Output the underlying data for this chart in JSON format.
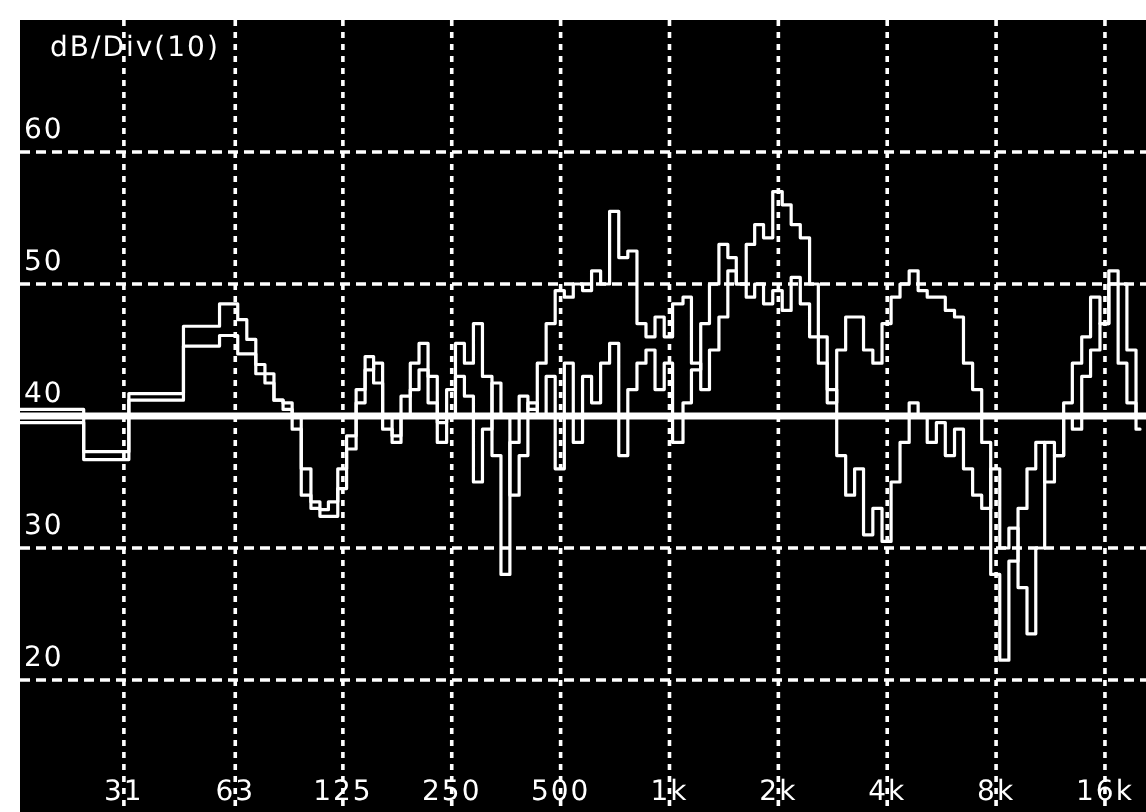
{
  "chart_data": {
    "type": "step",
    "ylabel": "dB/Div(10)",
    "x": [
      16,
      17,
      18,
      19,
      20.2,
      21.4,
      22.6,
      24,
      25.4,
      26.9,
      28.5,
      30.2,
      32,
      33.9,
      35.9,
      38.1,
      40.3,
      42.7,
      45.3,
      48,
      50.8,
      53.8,
      57,
      60.4,
      64,
      67.8,
      71.8,
      76.1,
      80.6,
      85.4,
      90.5,
      95.9,
      102,
      108,
      114,
      121,
      128,
      136,
      144,
      152,
      161,
      171,
      181,
      192,
      203,
      215,
      228,
      242,
      256,
      271,
      287,
      304,
      323,
      342,
      362,
      384,
      406,
      431,
      456,
      483,
      512,
      542,
      575,
      609,
      645,
      683,
      724,
      767,
      813,
      861,
      912,
      967,
      1020,
      1090,
      1150,
      1220,
      1290,
      1370,
      1450,
      1530,
      1630,
      1720,
      1820,
      1930,
      2050,
      2170,
      2300,
      2440,
      2580,
      2730,
      2900,
      3070,
      3250,
      3440,
      3650,
      3870,
      4100,
      4340,
      4600,
      4870,
      5160,
      5470,
      5790,
      6140,
      6500,
      6890,
      7300,
      7730,
      8190,
      8680,
      9200,
      9740,
      10300,
      10900,
      11600,
      12300,
      13000,
      13800,
      14600,
      15500,
      16400,
      17400,
      18400,
      19500,
      20000
    ],
    "series": [
      {
        "color": "#ffffff",
        "values": [
          40.5,
          40.5,
          40.5,
          40.5,
          40.5,
          40.5,
          40.5,
          37.3,
          37.3,
          37.3,
          37.3,
          37.3,
          41.7,
          41.7,
          41.7,
          41.7,
          41.7,
          41.7,
          46.8,
          46.8,
          46.8,
          46.8,
          48.5,
          48.5,
          47.3,
          45.8,
          43.9,
          43.2,
          41.2,
          41,
          40,
          34,
          33.5,
          32.9,
          33.5,
          36,
          38.5,
          42,
          44.5,
          42.5,
          40,
          38,
          41.5,
          44,
          45.5,
          43,
          39.5,
          42,
          45.5,
          44,
          47,
          43,
          37,
          28,
          38,
          41.5,
          40.5,
          44,
          47,
          49.5,
          49,
          50,
          49.5,
          51,
          50,
          55.5,
          52,
          52.5,
          47,
          46,
          47.5,
          46,
          48.5,
          49,
          44,
          42,
          45,
          47.5,
          51,
          50,
          53,
          54.5,
          53.5,
          57,
          56,
          54.5,
          53.5,
          50,
          46,
          42,
          37,
          34,
          36,
          31,
          33,
          30.5,
          35,
          38,
          41,
          40,
          38,
          39.5,
          37,
          39,
          36,
          34,
          33,
          36,
          30,
          31.5,
          27,
          23.5,
          30,
          38,
          37,
          40,
          39,
          43,
          45,
          47,
          50,
          44,
          41,
          39,
          39
        ]
      },
      {
        "color": "#ffffff",
        "values": [
          39.5,
          39.5,
          39.5,
          39.5,
          39.5,
          39.5,
          39.5,
          36.7,
          36.7,
          36.7,
          36.7,
          36.7,
          41.2,
          41.2,
          41.2,
          41.2,
          41.2,
          41.2,
          45.3,
          45.3,
          45.3,
          45.3,
          46.1,
          46.1,
          44.7,
          44.7,
          43.2,
          42.5,
          41.2,
          40.5,
          39,
          36,
          33,
          32.4,
          32.4,
          34.5,
          37.5,
          41,
          43.5,
          44,
          39,
          38.5,
          40,
          42,
          43.5,
          41,
          38,
          40,
          43,
          41.5,
          35,
          39,
          42.5,
          40,
          34,
          37,
          41,
          40,
          43,
          36,
          44,
          38,
          43,
          41,
          44,
          45.5,
          37,
          42,
          44,
          45,
          42,
          44,
          38,
          41,
          43.5,
          47,
          50,
          53,
          52,
          50,
          49,
          50,
          48.5,
          49.5,
          48,
          50.5,
          48.5,
          46,
          44,
          41,
          45,
          47.5,
          47.5,
          45,
          44,
          47,
          49,
          50,
          51,
          49.5,
          49,
          49,
          48,
          47.5,
          44,
          42,
          38,
          28,
          21.5,
          29,
          33,
          36,
          38,
          35,
          37,
          41,
          44,
          46,
          49,
          47,
          51,
          50,
          45,
          40,
          40
        ]
      }
    ],
    "xlim": [
      16,
      20000
    ],
    "ylim": [
      10,
      70
    ],
    "xticks": [
      31,
      63,
      125,
      250,
      500,
      {
        "value": 1000,
        "label": "1k"
      },
      {
        "value": 2000,
        "label": "2k"
      },
      {
        "value": 4000,
        "label": "4k"
      },
      {
        "value": 8000,
        "label": "8k"
      },
      {
        "value": 16000,
        "label": "16k"
      }
    ],
    "yticks": [
      20,
      30,
      40,
      50,
      60
    ],
    "log": "x",
    "grid": true,
    "ref_lines": [
      {
        "axis": "y",
        "value": 40,
        "color": "#ffffff",
        "line_style": "solid"
      }
    ]
  }
}
